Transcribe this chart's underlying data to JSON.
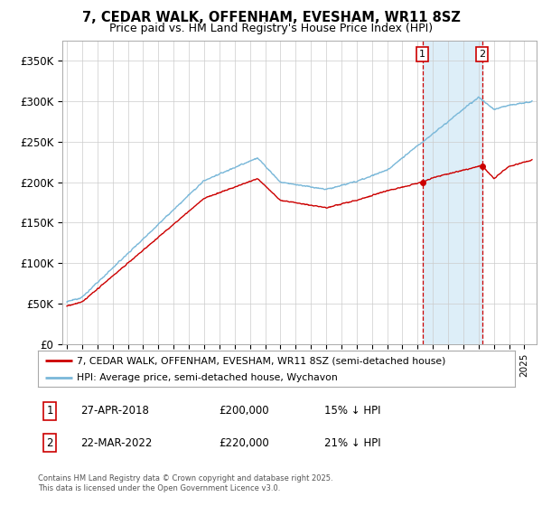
{
  "title": "7, CEDAR WALK, OFFENHAM, EVESHAM, WR11 8SZ",
  "subtitle": "Price paid vs. HM Land Registry's House Price Index (HPI)",
  "ylabel_ticks": [
    "£0",
    "£50K",
    "£100K",
    "£150K",
    "£200K",
    "£250K",
    "£300K",
    "£350K"
  ],
  "ytick_vals": [
    0,
    50000,
    100000,
    150000,
    200000,
    250000,
    300000,
    350000
  ],
  "ylim": [
    0,
    375000
  ],
  "xlim_start": 1994.7,
  "xlim_end": 2025.8,
  "hpi_color": "#7ab8d9",
  "price_color": "#cc0000",
  "vline1_x": 2018.32,
  "vline2_x": 2022.23,
  "vline_color": "#cc0000",
  "shade_color": "#ddeef8",
  "annotation1": {
    "label": "1",
    "date": "27-APR-2018",
    "price": "£200,000",
    "hpi": "15% ↓ HPI"
  },
  "annotation2": {
    "label": "2",
    "date": "22-MAR-2022",
    "price": "£220,000",
    "hpi": "21% ↓ HPI"
  },
  "legend1": "7, CEDAR WALK, OFFENHAM, EVESHAM, WR11 8SZ (semi-detached house)",
  "legend2": "HPI: Average price, semi-detached house, Wychavon",
  "footer": "Contains HM Land Registry data © Crown copyright and database right 2025.\nThis data is licensed under the Open Government Licence v3.0.",
  "background_color": "#ffffff"
}
